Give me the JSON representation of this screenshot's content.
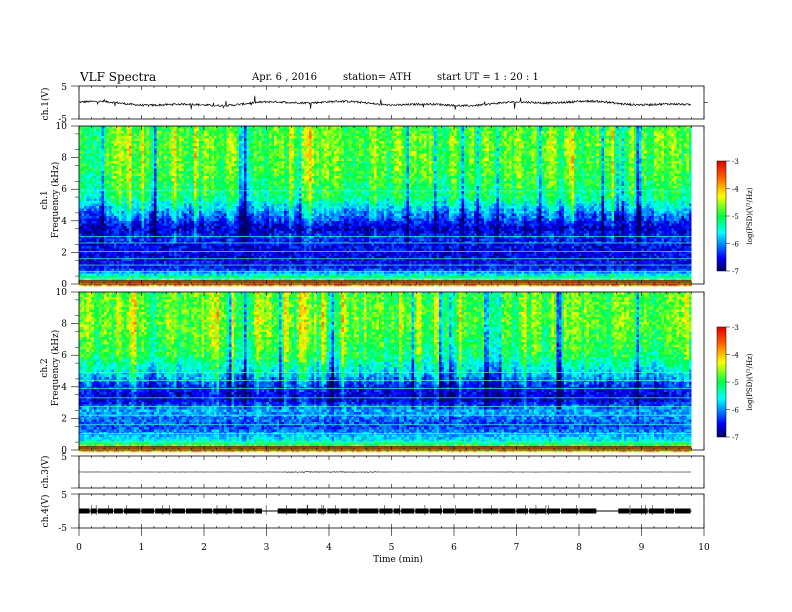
{
  "header": {
    "title": "VLF  Spectra",
    "date": "Apr. 6  , 2016",
    "station": "station= ATH",
    "start": "start  UT =   1  : 20 : 1"
  },
  "chart_data": [
    {
      "type": "line",
      "name": "ch1-waveform",
      "ylabel": "ch.1(V)",
      "ylim": [
        -5,
        5
      ],
      "y_ticks": [
        "5",
        "-5"
      ],
      "xlim": [
        0,
        10
      ],
      "data_xrange": [
        0,
        9.8
      ],
      "baseline": -0.3,
      "noise_amplitude": 0.6
    },
    {
      "type": "heatmap",
      "name": "ch1-spectrogram",
      "ylabel": "ch.1\nFrequency (kHz)",
      "ylim": [
        0,
        10
      ],
      "y_ticks": [
        "0",
        "2",
        "4",
        "6",
        "8",
        "10"
      ],
      "xlim": [
        0,
        10
      ],
      "data_xrange": [
        0,
        9.8
      ],
      "colorbar": {
        "label": "log(PSD)(V²/Hz)",
        "range": [
          -7,
          -3
        ],
        "ticks": [
          "-3",
          "-4",
          "-5",
          "-6",
          "-7"
        ]
      },
      "level_profile_khz": [
        [
          0,
          -4.0
        ],
        [
          0.5,
          -5.4
        ],
        [
          1.0,
          -6.5
        ],
        [
          2.0,
          -6.6
        ],
        [
          3.0,
          -6.4
        ],
        [
          3.5,
          -6.7
        ],
        [
          4.5,
          -6.0
        ],
        [
          5.5,
          -5.2
        ],
        [
          7.0,
          -4.9
        ],
        [
          9.0,
          -4.8
        ],
        [
          10,
          -4.9
        ]
      ],
      "tones_khz": [
        0.35,
        0.8,
        1.2,
        1.6,
        2.05,
        2.6,
        3.0,
        5.9
      ]
    },
    {
      "type": "heatmap",
      "name": "ch2-spectrogram",
      "ylabel": "ch.2\nFrequency (kHz)",
      "ylim": [
        0,
        10
      ],
      "y_ticks": [
        "0",
        "2",
        "4",
        "6",
        "8",
        "10"
      ],
      "xlim": [
        0,
        10
      ],
      "data_xrange": [
        0,
        9.8
      ],
      "colorbar": {
        "label": "log(PSD)(V²/Hz)",
        "range": [
          -7,
          -3
        ],
        "ticks": [
          "-3",
          "-4",
          "-5",
          "-6",
          "-7"
        ]
      },
      "level_profile_khz": [
        [
          0,
          -4.2
        ],
        [
          0.6,
          -5.6
        ],
        [
          1.5,
          -6.3
        ],
        [
          2.5,
          -5.9
        ],
        [
          3.2,
          -6.7
        ],
        [
          4.0,
          -6.5
        ],
        [
          4.8,
          -5.8
        ],
        [
          6.0,
          -5.1
        ],
        [
          8.0,
          -4.8
        ],
        [
          10,
          -4.9
        ]
      ],
      "tones_khz": [
        0.5,
        1.05,
        1.6,
        2.2,
        2.75,
        3.3,
        3.9,
        4.4,
        4.9
      ]
    },
    {
      "type": "line",
      "name": "ch3-waveform",
      "ylabel": "ch.3(V)",
      "ylim": [
        -5,
        5
      ],
      "y_ticks": [
        "5"
      ],
      "xlim": [
        0,
        10
      ],
      "data_xrange": [
        0,
        9.8
      ],
      "baseline": 0,
      "noise_amplitude": 0.05
    },
    {
      "type": "line",
      "name": "ch4-waveform",
      "ylabel": "ch.4(V)",
      "ylim": [
        -5,
        5
      ],
      "y_ticks": [
        "5",
        "-5"
      ],
      "xlim": [
        0,
        10
      ],
      "data_xrange": [
        0,
        9.8
      ],
      "baseline": 0,
      "noise_amplitude": 0.5
    }
  ],
  "x_axis": {
    "label": "Time  (min)",
    "ticks": [
      "0",
      "1",
      "2",
      "3",
      "4",
      "5",
      "6",
      "7",
      "8",
      "9",
      "10"
    ]
  }
}
